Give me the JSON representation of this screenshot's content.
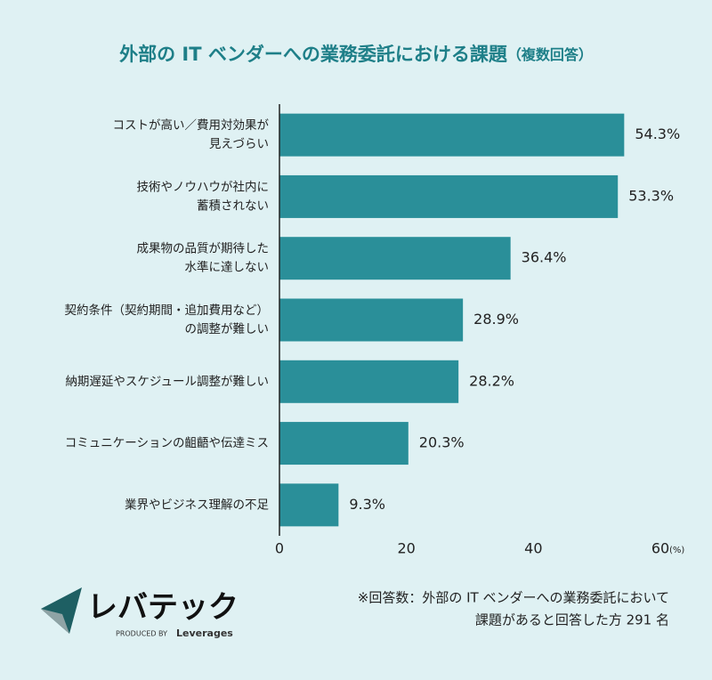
{
  "chart_data": {
    "type": "bar",
    "orientation": "horizontal",
    "title": "外部の IT ベンダーへの業務委託における課題",
    "title_note": "（複数回答）",
    "categories": [
      [
        "コストが高い／費用対効果が",
        "見えづらい"
      ],
      [
        "技術やノウハウが社内に",
        "蓄積されない"
      ],
      [
        "成果物の品質が期待した",
        "水準に達しない"
      ],
      [
        "契約条件（契約期間・追加費用など）",
        "の調整が難しい"
      ],
      [
        "納期遅延やスケジュール調整が難しい"
      ],
      [
        "コミュニケーションの齟齬や伝達ミス"
      ],
      [
        "業界やビジネス理解の不足"
      ]
    ],
    "values": [
      54.3,
      53.3,
      36.4,
      28.9,
      28.2,
      20.3,
      9.3
    ],
    "value_labels": [
      "54.3%",
      "53.3%",
      "36.4%",
      "28.9%",
      "28.2%",
      "20.3%",
      "9.3%"
    ],
    "color": "#2a8f99",
    "xlim": [
      0,
      60
    ],
    "xticks": [
      0,
      20,
      40,
      60
    ],
    "x_unit": "(%)",
    "footnote": [
      "※回答数：外部の IT ベンダーへの業務委託において",
      "課題があると回答した方  291 名"
    ]
  },
  "logo": {
    "name": "レバテック",
    "produced_by": "PRODUCED BY",
    "company": "Leverages"
  }
}
